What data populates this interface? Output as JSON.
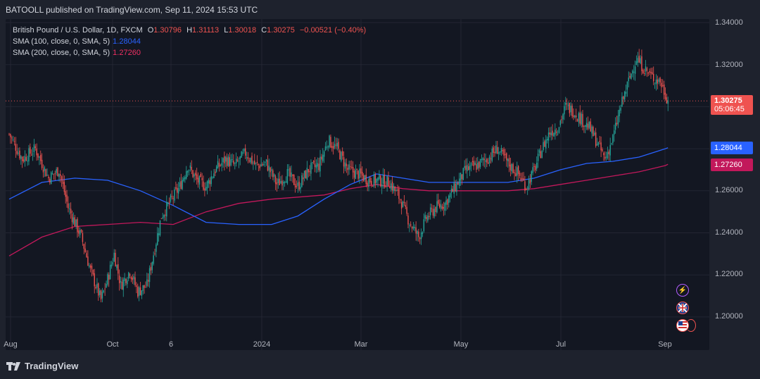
{
  "header": {
    "published": "BATOOLL published on TradingView.com, Sep 11, 2024 15:53 UTC"
  },
  "legend": {
    "symbol": "British Pound / U.S. Dollar, 1D, FXCM",
    "o_label": "O",
    "o": "1.30796",
    "h_label": "H",
    "h": "1.31113",
    "l_label": "L",
    "l": "1.30018",
    "c_label": "C",
    "c": "1.30275",
    "change": "−0.00521 (−0.40%)",
    "sma100_label": "SMA (100, close, 0, SMA, 5)",
    "sma100_value": "1.28044",
    "sma200_label": "SMA (200, close, 0, SMA, 5)",
    "sma200_value": "1.27260"
  },
  "price_axis": {
    "ticks": [
      "1.34000",
      "1.32000",
      "1.26000",
      "1.24000",
      "1.22000",
      "1.20000"
    ],
    "badges": {
      "price": "1.30275",
      "countdown": "05:06:45",
      "sma100": "1.28044",
      "sma200": "1.27260"
    }
  },
  "time_axis": {
    "ticks": [
      "Aug",
      "Oct",
      "6",
      "2024",
      "Mar",
      "May",
      "Jul",
      "Sep"
    ]
  },
  "footer": {
    "brand": "TradingView"
  },
  "colors": {
    "up": "#26a69a",
    "down": "#ef5350",
    "sma100": "#2962ff",
    "sma200": "#c2185b",
    "background": "#131722",
    "grid": "#232632"
  },
  "event_icons": [
    "lightning-icon",
    "uk-flag-icon",
    "us-flag-icon"
  ],
  "chart_data": {
    "type": "candlestick",
    "symbol": "GBPUSD",
    "timeframe": "1D",
    "y_range": [
      1.19,
      1.345
    ],
    "x_ticks": [
      "Aug",
      "Oct",
      "6",
      "2024",
      "Mar",
      "May",
      "Jul",
      "Sep"
    ],
    "close_path": [
      {
        "x": 0,
        "v": 1.287
      },
      {
        "x": 10,
        "v": 1.275
      },
      {
        "x": 20,
        "v": 1.28
      },
      {
        "x": 30,
        "v": 1.266
      },
      {
        "x": 38,
        "v": 1.27
      },
      {
        "x": 45,
        "v": 1.252
      },
      {
        "x": 55,
        "v": 1.238
      },
      {
        "x": 62,
        "v": 1.222
      },
      {
        "x": 70,
        "v": 1.208
      },
      {
        "x": 75,
        "v": 1.218
      },
      {
        "x": 80,
        "v": 1.23
      },
      {
        "x": 85,
        "v": 1.215
      },
      {
        "x": 92,
        "v": 1.222
      },
      {
        "x": 98,
        "v": 1.212
      },
      {
        "x": 105,
        "v": 1.215
      },
      {
        "x": 110,
        "v": 1.23
      },
      {
        "x": 116,
        "v": 1.248
      },
      {
        "x": 123,
        "v": 1.255
      },
      {
        "x": 130,
        "v": 1.262
      },
      {
        "x": 136,
        "v": 1.272
      },
      {
        "x": 143,
        "v": 1.265
      },
      {
        "x": 150,
        "v": 1.262
      },
      {
        "x": 157,
        "v": 1.27
      },
      {
        "x": 165,
        "v": 1.275
      },
      {
        "x": 172,
        "v": 1.272
      },
      {
        "x": 180,
        "v": 1.278
      },
      {
        "x": 188,
        "v": 1.272
      },
      {
        "x": 196,
        "v": 1.273
      },
      {
        "x": 204,
        "v": 1.263
      },
      {
        "x": 212,
        "v": 1.268
      },
      {
        "x": 220,
        "v": 1.262
      },
      {
        "x": 228,
        "v": 1.27
      },
      {
        "x": 236,
        "v": 1.272
      },
      {
        "x": 243,
        "v": 1.284
      },
      {
        "x": 250,
        "v": 1.28
      },
      {
        "x": 258,
        "v": 1.27
      },
      {
        "x": 266,
        "v": 1.268
      },
      {
        "x": 274,
        "v": 1.265
      },
      {
        "x": 282,
        "v": 1.265
      },
      {
        "x": 290,
        "v": 1.264
      },
      {
        "x": 298,
        "v": 1.256
      },
      {
        "x": 305,
        "v": 1.245
      },
      {
        "x": 312,
        "v": 1.238
      },
      {
        "x": 318,
        "v": 1.247
      },
      {
        "x": 325,
        "v": 1.252
      },
      {
        "x": 332,
        "v": 1.254
      },
      {
        "x": 340,
        "v": 1.262
      },
      {
        "x": 348,
        "v": 1.27
      },
      {
        "x": 356,
        "v": 1.272
      },
      {
        "x": 364,
        "v": 1.275
      },
      {
        "x": 372,
        "v": 1.28
      },
      {
        "x": 380,
        "v": 1.273
      },
      {
        "x": 388,
        "v": 1.268
      },
      {
        "x": 394,
        "v": 1.262
      },
      {
        "x": 400,
        "v": 1.27
      },
      {
        "x": 406,
        "v": 1.28
      },
      {
        "x": 412,
        "v": 1.288
      },
      {
        "x": 418,
        "v": 1.29
      },
      {
        "x": 424,
        "v": 1.3
      },
      {
        "x": 430,
        "v": 1.298
      },
      {
        "x": 436,
        "v": 1.294
      },
      {
        "x": 442,
        "v": 1.29
      },
      {
        "x": 448,
        "v": 1.283
      },
      {
        "x": 454,
        "v": 1.275
      },
      {
        "x": 460,
        "v": 1.285
      },
      {
        "x": 466,
        "v": 1.3
      },
      {
        "x": 472,
        "v": 1.312
      },
      {
        "x": 478,
        "v": 1.323
      },
      {
        "x": 484,
        "v": 1.318
      },
      {
        "x": 490,
        "v": 1.314
      },
      {
        "x": 496,
        "v": 1.312
      },
      {
        "x": 502,
        "v": 1.303
      }
    ],
    "series": [
      {
        "name": "SMA (100, close, 0, SMA, 5)",
        "last": 1.28044,
        "points": [
          {
            "x": 0,
            "v": 1.256
          },
          {
            "x": 25,
            "v": 1.264
          },
          {
            "x": 50,
            "v": 1.266
          },
          {
            "x": 75,
            "v": 1.265
          },
          {
            "x": 100,
            "v": 1.26
          },
          {
            "x": 125,
            "v": 1.253
          },
          {
            "x": 150,
            "v": 1.245
          },
          {
            "x": 175,
            "v": 1.244
          },
          {
            "x": 200,
            "v": 1.244
          },
          {
            "x": 220,
            "v": 1.248
          },
          {
            "x": 240,
            "v": 1.256
          },
          {
            "x": 260,
            "v": 1.263
          },
          {
            "x": 280,
            "v": 1.268
          },
          {
            "x": 300,
            "v": 1.266
          },
          {
            "x": 320,
            "v": 1.264
          },
          {
            "x": 340,
            "v": 1.264
          },
          {
            "x": 360,
            "v": 1.264
          },
          {
            "x": 380,
            "v": 1.264
          },
          {
            "x": 400,
            "v": 1.266
          },
          {
            "x": 420,
            "v": 1.27
          },
          {
            "x": 440,
            "v": 1.273
          },
          {
            "x": 460,
            "v": 1.274
          },
          {
            "x": 480,
            "v": 1.276
          },
          {
            "x": 500,
            "v": 1.28
          },
          {
            "x": 502,
            "v": 1.28044
          }
        ]
      },
      {
        "name": "SMA (200, close, 0, SMA, 5)",
        "last": 1.2726,
        "points": [
          {
            "x": 0,
            "v": 1.229
          },
          {
            "x": 25,
            "v": 1.238
          },
          {
            "x": 50,
            "v": 1.243
          },
          {
            "x": 75,
            "v": 1.244
          },
          {
            "x": 100,
            "v": 1.245
          },
          {
            "x": 125,
            "v": 1.244
          },
          {
            "x": 150,
            "v": 1.25
          },
          {
            "x": 175,
            "v": 1.254
          },
          {
            "x": 200,
            "v": 1.256
          },
          {
            "x": 220,
            "v": 1.257
          },
          {
            "x": 240,
            "v": 1.258
          },
          {
            "x": 260,
            "v": 1.261
          },
          {
            "x": 280,
            "v": 1.263
          },
          {
            "x": 300,
            "v": 1.261
          },
          {
            "x": 320,
            "v": 1.26
          },
          {
            "x": 340,
            "v": 1.26
          },
          {
            "x": 360,
            "v": 1.26
          },
          {
            "x": 380,
            "v": 1.26
          },
          {
            "x": 400,
            "v": 1.261
          },
          {
            "x": 420,
            "v": 1.263
          },
          {
            "x": 440,
            "v": 1.265
          },
          {
            "x": 460,
            "v": 1.267
          },
          {
            "x": 480,
            "v": 1.269
          },
          {
            "x": 500,
            "v": 1.272
          },
          {
            "x": 502,
            "v": 1.2726
          }
        ]
      }
    ],
    "last_price": 1.30275,
    "grid": true
  }
}
